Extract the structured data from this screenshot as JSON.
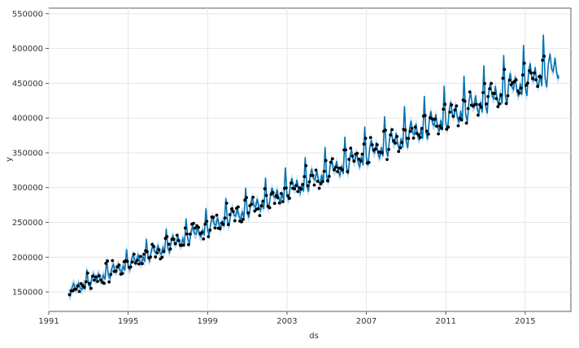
{
  "chart_data": {
    "type": "line",
    "title": "",
    "xlabel": "ds",
    "ylabel": "y",
    "xlim": [
      1991.0,
      2017.3
    ],
    "ylim": [
      122000,
      558000
    ],
    "grid": true,
    "x_ticks": [
      {
        "value": 1991,
        "label": "1991"
      },
      {
        "value": 1995,
        "label": "1995"
      },
      {
        "value": 1999,
        "label": "1999"
      },
      {
        "value": 2003,
        "label": "2003"
      },
      {
        "value": 2007,
        "label": "2007"
      },
      {
        "value": 2011,
        "label": "2011"
      },
      {
        "value": 2015,
        "label": "2015"
      }
    ],
    "y_ticks": [
      {
        "value": 150000,
        "label": "150000"
      },
      {
        "value": 200000,
        "label": "200000"
      },
      {
        "value": 250000,
        "label": "250000"
      },
      {
        "value": 300000,
        "label": "300000"
      },
      {
        "value": 350000,
        "label": "350000"
      },
      {
        "value": 400000,
        "label": "400000"
      },
      {
        "value": 450000,
        "label": "450000"
      },
      {
        "value": 500000,
        "label": "500000"
      },
      {
        "value": 550000,
        "label": "550000"
      }
    ],
    "trend": {
      "x": [
        1992.0,
        2016.7
      ],
      "y": [
        148000,
        466000
      ]
    },
    "seasonal": [
      0.0,
      -0.03,
      0.04,
      0.07,
      0.02,
      0.01,
      0.05,
      0.0,
      -0.02,
      0.02,
      -0.02,
      0.14
    ],
    "band_halfwidth": 7500,
    "colors": {
      "forecast": "#0072B2",
      "band": "#A9CCE8",
      "points": "#000000",
      "grid": "#E6E6E6",
      "axis": "#333333"
    },
    "observed_start": 1992.0,
    "observed_end": 2016.0,
    "forecast_end": 2016.7
  }
}
